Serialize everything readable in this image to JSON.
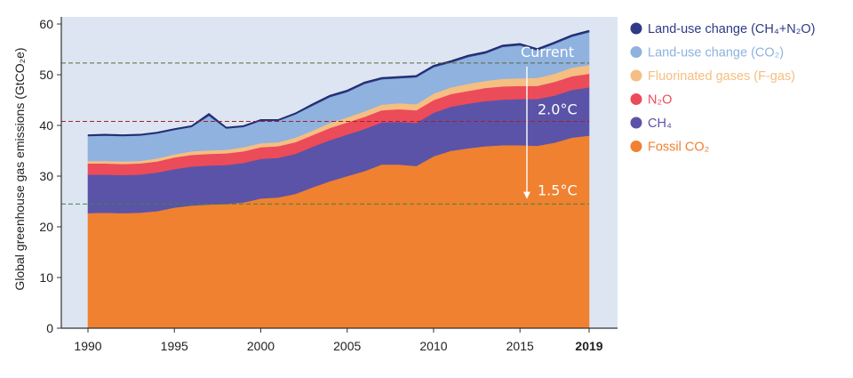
{
  "chart_data": {
    "type": "area",
    "stacked": true,
    "x": [
      1990,
      1991,
      1992,
      1993,
      1994,
      1995,
      1996,
      1997,
      1998,
      1999,
      2000,
      2001,
      2002,
      2003,
      2004,
      2005,
      2006,
      2007,
      2008,
      2009,
      2010,
      2011,
      2012,
      2013,
      2014,
      2015,
      2016,
      2017,
      2018,
      2019
    ],
    "xlim": [
      1990,
      2019
    ],
    "ylim": [
      0,
      60
    ],
    "xticks": [
      1990,
      1995,
      2000,
      2005,
      2010,
      2015,
      2019
    ],
    "xtick_labels": [
      "1990",
      "1995",
      "2000",
      "2005",
      "2010",
      "2015",
      "2019"
    ],
    "yticks": [
      0,
      10,
      20,
      30,
      40,
      50,
      60
    ],
    "ytick_labels": [
      "0",
      "10",
      "20",
      "30",
      "40",
      "50",
      "60"
    ],
    "xlabel": "",
    "ylabel": "Global greenhouse gas emissions (GtCO₂e)",
    "background": "#dde5f2",
    "series": [
      {
        "name": "Fossil CO₂",
        "color": "#ef8130",
        "values": [
          22.7,
          22.8,
          22.7,
          22.8,
          23.1,
          23.8,
          24.2,
          24.4,
          24.5,
          24.8,
          25.6,
          25.8,
          26.5,
          27.8,
          29.0,
          30.0,
          31.0,
          32.3,
          32.3,
          32.0,
          33.9,
          35.0,
          35.5,
          35.9,
          36.1,
          36.1,
          36.0,
          36.6,
          37.6,
          38.0
        ]
      },
      {
        "name": "CH₄",
        "color": "#5b53a8",
        "values": [
          7.6,
          7.5,
          7.5,
          7.5,
          7.6,
          7.6,
          7.7,
          7.7,
          7.7,
          7.8,
          7.8,
          7.8,
          7.9,
          8.0,
          8.1,
          8.2,
          8.3,
          8.3,
          8.4,
          8.5,
          8.6,
          8.7,
          8.8,
          8.9,
          9.0,
          9.1,
          9.2,
          9.3,
          9.4,
          9.5
        ]
      },
      {
        "name": "N₂O",
        "color": "#ec4b5a",
        "values": [
          2.2,
          2.2,
          2.2,
          2.2,
          2.2,
          2.3,
          2.3,
          2.3,
          2.3,
          2.3,
          2.3,
          2.3,
          2.3,
          2.3,
          2.4,
          2.4,
          2.4,
          2.4,
          2.5,
          2.5,
          2.5,
          2.5,
          2.5,
          2.6,
          2.6,
          2.6,
          2.6,
          2.7,
          2.7,
          2.7
        ]
      },
      {
        "name": "Fluorinated gases (F-gas)",
        "color": "#f5be82",
        "values": [
          0.5,
          0.5,
          0.5,
          0.5,
          0.6,
          0.6,
          0.7,
          0.7,
          0.7,
          0.8,
          0.8,
          0.8,
          0.9,
          0.9,
          1.0,
          1.0,
          1.1,
          1.1,
          1.2,
          1.2,
          1.3,
          1.3,
          1.4,
          1.4,
          1.5,
          1.5,
          1.6,
          1.6,
          1.7,
          1.7
        ]
      },
      {
        "name": "Land-use change (CO₂)",
        "color": "#8fb2de",
        "values": [
          4.9,
          5.0,
          5.0,
          5.0,
          4.9,
          4.8,
          4.8,
          6.8,
          4.2,
          4.0,
          4.4,
          4.2,
          4.6,
          4.9,
          5.1,
          5.0,
          5.4,
          5.0,
          4.9,
          5.3,
          5.2,
          4.9,
          5.3,
          5.4,
          6.3,
          6.5,
          5.4,
          5.9,
          6.1,
          6.5
        ]
      },
      {
        "name": "Land-use change (CH₄+N₂O)",
        "color": "#2e3a86",
        "values": [
          0.2,
          0.2,
          0.2,
          0.2,
          0.2,
          0.2,
          0.2,
          0.4,
          0.2,
          0.2,
          0.2,
          0.2,
          0.2,
          0.3,
          0.3,
          0.3,
          0.3,
          0.3,
          0.3,
          0.3,
          0.3,
          0.3,
          0.3,
          0.3,
          0.3,
          0.3,
          0.3,
          0.3,
          0.3,
          0.3
        ]
      }
    ],
    "reference_lines": [
      {
        "label": "Current",
        "value": 52.3,
        "color": "#5a6a3a"
      },
      {
        "label": "2.0°C",
        "value": 40.8,
        "color": "#a02030"
      },
      {
        "label": "1.5°C",
        "value": 24.5,
        "color": "#3a8a3a"
      }
    ],
    "arrow": {
      "x": 2015.4,
      "from": 52.3,
      "to": 25.5
    }
  }
}
